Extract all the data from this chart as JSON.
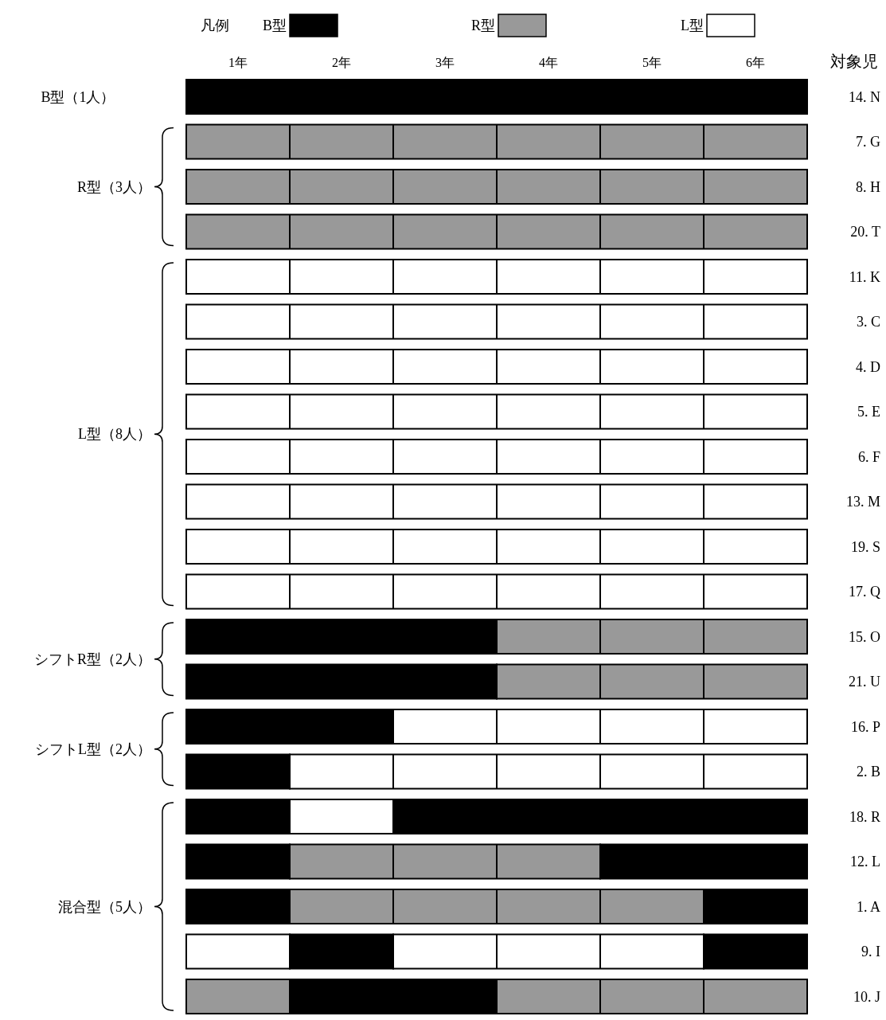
{
  "chart_data": {
    "type": "bar",
    "orientation": "horizontal",
    "categories": [
      "14. N",
      "7. G",
      "8. H",
      "20. T",
      "11. K",
      "3. C",
      "4. D",
      "5. E",
      "6. F",
      "13. M",
      "19. S",
      "17. Q",
      "15. O",
      "21. U",
      "16. P",
      "2. B",
      "18. R",
      "12. L",
      "1. A",
      "9. I",
      "10. J"
    ],
    "ylabel": "対象児",
    "legend_title": "凡例",
    "legend": "top",
    "xlim": [
      0,
      6
    ],
    "xticks": [
      {
        "value": 0.5,
        "label": "1年"
      },
      {
        "value": 1.5,
        "label": "2年"
      },
      {
        "value": 2.5,
        "label": "3年"
      },
      {
        "value": 3.5,
        "label": "4年"
      },
      {
        "value": 4.5,
        "label": "5年"
      },
      {
        "value": 5.5,
        "label": "6年"
      }
    ],
    "series": [
      {
        "name": "B型",
        "color": "#000000",
        "values": [
          6,
          null,
          null,
          null,
          null,
          null,
          null,
          null,
          null,
          null,
          null,
          null,
          3,
          3,
          2,
          1,
          1,
          1,
          1,
          1,
          2
        ],
        "base": [
          0,
          null,
          null,
          null,
          null,
          null,
          null,
          null,
          null,
          null,
          null,
          null,
          0,
          0,
          0,
          0,
          0,
          0,
          0,
          1,
          1
        ]
      },
      {
        "name": "R型",
        "color": "#999999",
        "values": [
          null,
          6,
          6,
          6,
          null,
          null,
          null,
          null,
          null,
          null,
          null,
          null,
          3,
          3,
          null,
          null,
          null,
          3,
          4,
          null,
          1
        ],
        "base": [
          null,
          0,
          0,
          0,
          null,
          null,
          null,
          null,
          null,
          null,
          null,
          null,
          3,
          3,
          null,
          null,
          null,
          1,
          1,
          null,
          0
        ]
      },
      {
        "name": "L型",
        "color": "#ffffff",
        "values": [
          null,
          null,
          null,
          null,
          6,
          6,
          6,
          6,
          6,
          6,
          6,
          6,
          null,
          null,
          4,
          5,
          1,
          null,
          null,
          1,
          null
        ],
        "base": [
          null,
          null,
          null,
          null,
          0,
          0,
          0,
          0,
          0,
          0,
          0,
          0,
          null,
          null,
          2,
          1,
          1,
          null,
          null,
          0,
          null
        ]
      },
      {
        "color": "#000000",
        "values": [
          null,
          null,
          null,
          null,
          null,
          null,
          null,
          null,
          null,
          null,
          null,
          null,
          null,
          null,
          null,
          null,
          4,
          2,
          1,
          1,
          null
        ],
        "base": [
          null,
          null,
          null,
          null,
          null,
          null,
          null,
          null,
          null,
          null,
          null,
          null,
          null,
          null,
          null,
          null,
          2,
          4,
          5,
          5,
          null
        ]
      },
      {
        "colors": [
          null,
          null,
          null,
          null,
          null,
          null,
          null,
          null,
          null,
          null,
          null,
          null,
          null,
          null,
          null,
          null,
          null,
          null,
          null,
          "#ffffff",
          "#999999"
        ],
        "values": [
          null,
          null,
          null,
          null,
          null,
          null,
          null,
          null,
          null,
          null,
          null,
          null,
          null,
          null,
          null,
          null,
          null,
          null,
          null,
          3,
          3
        ],
        "base": [
          null,
          null,
          null,
          null,
          null,
          null,
          null,
          null,
          null,
          null,
          null,
          null,
          null,
          null,
          null,
          null,
          null,
          null,
          null,
          2,
          3
        ]
      }
    ],
    "annotations": [
      "B型（1人）",
      "R型（3人）",
      "L型（8人）",
      "シフトR型（2人）",
      "シフトL型（2人）",
      "混合型（5人）"
    ]
  }
}
